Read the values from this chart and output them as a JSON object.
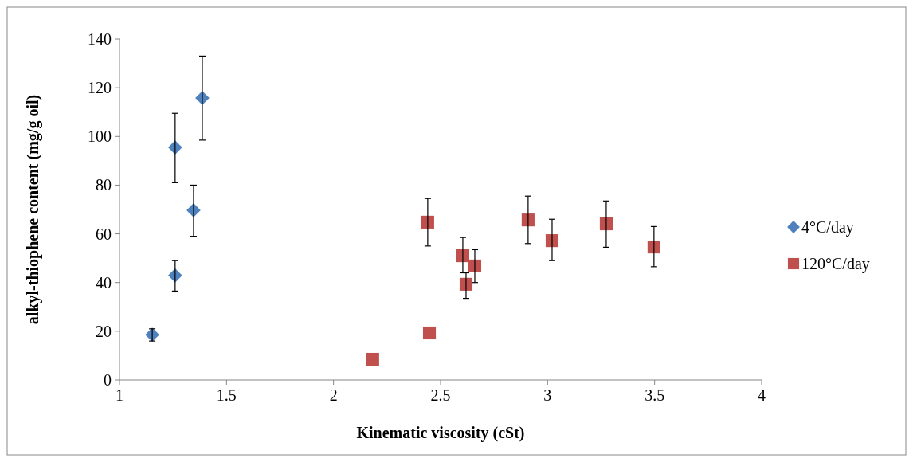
{
  "chart_data": {
    "type": "scatter",
    "xlabel": "Kinematic viscosity (cSt)",
    "ylabel": "alkyl-thiophene content (mg/g oil)",
    "xlim": [
      1,
      4
    ],
    "xticks": [
      1,
      1.5,
      2,
      2.5,
      3,
      3.5,
      4
    ],
    "ylim": [
      0,
      140
    ],
    "yticks": [
      0,
      20,
      40,
      60,
      80,
      100,
      120,
      140
    ],
    "grid": false,
    "legend": "right",
    "series": [
      {
        "name": "4°C/day",
        "color": "#4f81bd",
        "marker": "diamond",
        "x": [
          1.153,
          1.26,
          1.26,
          1.346,
          1.387
        ],
        "values": [
          18.6,
          42.9,
          95.5,
          69.7,
          115.8
        ],
        "errors": [
          [
            16,
            21
          ],
          [
            36.5,
            49
          ],
          [
            81,
            109.5
          ],
          [
            59,
            80
          ],
          [
            98.5,
            133
          ]
        ]
      },
      {
        "name": "120°C/day",
        "color": "#c0504d",
        "marker": "square",
        "x": [
          2.183,
          2.448,
          2.44,
          2.604,
          2.619,
          2.66,
          2.909,
          3.021,
          3.274,
          3.497
        ],
        "values": [
          8.5,
          19.3,
          64.8,
          51,
          39.3,
          46.8,
          65.7,
          57.2,
          64.1,
          54.6
        ],
        "errors": [
          null,
          null,
          [
            55,
            74.5
          ],
          [
            44,
            58.5
          ],
          [
            33.5,
            44
          ],
          [
            40,
            53.5
          ],
          [
            56,
            75.5
          ],
          [
            49,
            66
          ],
          [
            54.5,
            73.5
          ],
          [
            46.5,
            63
          ]
        ]
      }
    ]
  }
}
